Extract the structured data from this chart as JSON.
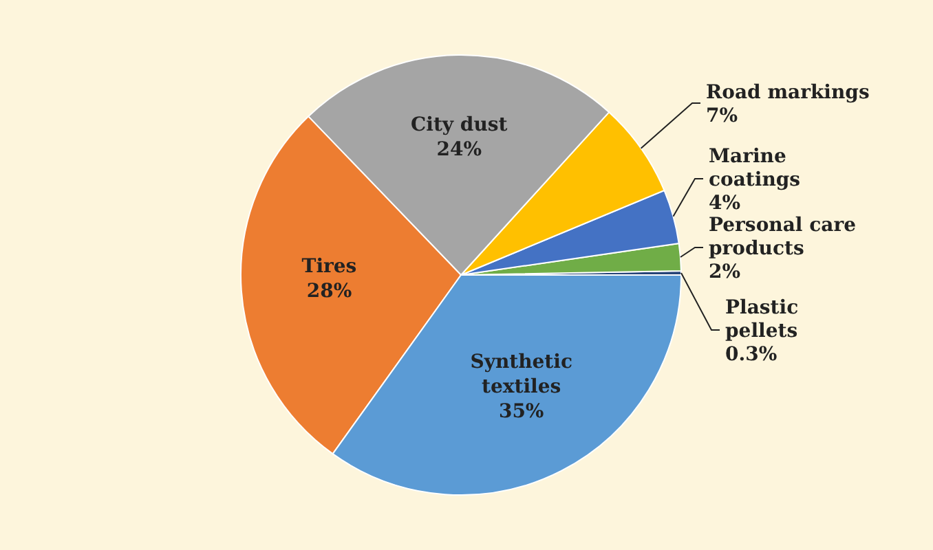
{
  "chart_data": {
    "type": "pie",
    "categories": [
      "Plastic pellets",
      "Personal care products",
      "Marine coatings",
      "Road markings",
      "City dust",
      "Tires",
      "Synthetic textiles"
    ],
    "values": [
      0.3,
      2,
      4,
      7,
      24,
      28,
      35
    ],
    "value_labels": [
      "0.3%",
      "2%",
      "4%",
      "7%",
      "24%",
      "28%",
      "35%"
    ],
    "colors": [
      "#264478",
      "#70ad47",
      "#4472c4",
      "#ffc000",
      "#a5a5a5",
      "#ed7d31",
      "#5b9bd5"
    ]
  }
}
